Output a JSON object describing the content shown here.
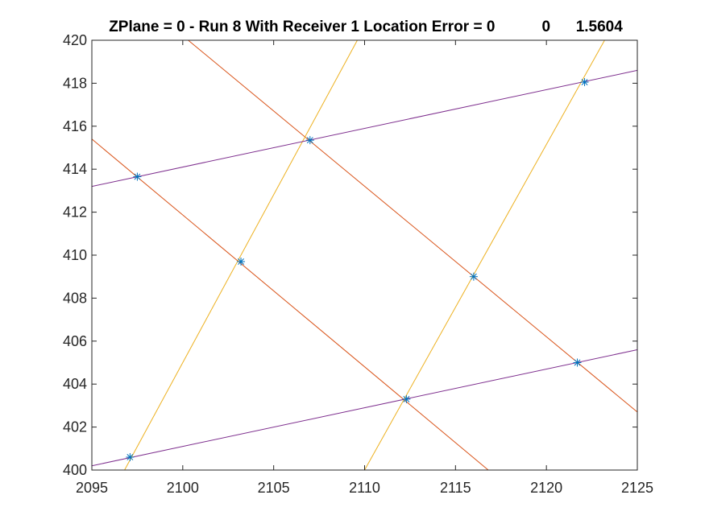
{
  "chart_data": {
    "type": "line",
    "title": "ZPlane = 0 - Run 8 With Receiver 1 Location Error = 0           0      1.5604",
    "xlabel": "",
    "ylabel": "",
    "xlim": [
      2095,
      2125
    ],
    "ylim": [
      400,
      420
    ],
    "xticks": [
      2095,
      2100,
      2105,
      2110,
      2115,
      2120,
      2125
    ],
    "yticks": [
      400,
      402,
      404,
      406,
      408,
      410,
      412,
      414,
      416,
      418,
      420
    ],
    "grid": false,
    "legend": "none",
    "series": [
      {
        "color": "#D95319",
        "x": [
          2095,
          2116.8
        ],
        "y": [
          415.4,
          400
        ]
      },
      {
        "color": "#D95319",
        "x": [
          2100.3,
          2125
        ],
        "y": [
          420,
          402.7
        ]
      },
      {
        "color": "#EDB120",
        "x": [
          2096.8,
          2109.6
        ],
        "y": [
          400,
          420
        ]
      },
      {
        "color": "#EDB120",
        "x": [
          2110.0,
          2123.2
        ],
        "y": [
          400,
          420
        ]
      },
      {
        "color": "#7E2F8E",
        "x": [
          2095,
          2125
        ],
        "y": [
          413.2,
          418.6
        ]
      },
      {
        "color": "#7E2F8E",
        "x": [
          2095,
          2125
        ],
        "y": [
          400.2,
          405.6
        ]
      }
    ],
    "markers": {
      "color": "#0072BD",
      "symbol": "*",
      "x": [
        2097.5,
        2107.0,
        2122.1,
        2103.2,
        2116.0,
        2112.3,
        2097.1,
        2121.7
      ],
      "y": [
        413.65,
        415.35,
        418.05,
        409.7,
        409.0,
        403.3,
        400.6,
        405.0
      ]
    }
  }
}
